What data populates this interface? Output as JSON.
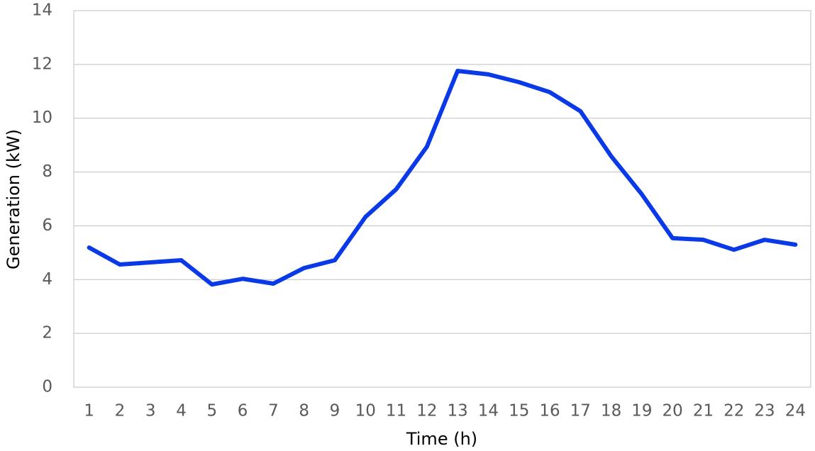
{
  "chart_data": {
    "type": "line",
    "x_label": "Time (h)",
    "y_label": "Generation (kW)",
    "categories": [
      "1",
      "2",
      "3",
      "4",
      "5",
      "6",
      "7",
      "8",
      "9",
      "10",
      "11",
      "12",
      "13",
      "14",
      "15",
      "16",
      "17",
      "18",
      "19",
      "20",
      "21",
      "22",
      "23",
      "24"
    ],
    "series": [
      {
        "name": "Generation",
        "color": "#0a3ae8",
        "values": [
          5.19,
          4.56,
          4.64,
          4.72,
          3.82,
          4.03,
          3.85,
          4.43,
          4.72,
          6.33,
          7.36,
          8.94,
          11.76,
          11.63,
          11.34,
          10.97,
          10.26,
          8.59,
          7.17,
          5.54,
          5.48,
          5.11,
          5.48,
          5.3
        ]
      }
    ],
    "ylim": [
      0,
      14
    ],
    "yticks": [
      0,
      2,
      4,
      6,
      8,
      10,
      12,
      14
    ],
    "grid": true,
    "legend": false
  }
}
